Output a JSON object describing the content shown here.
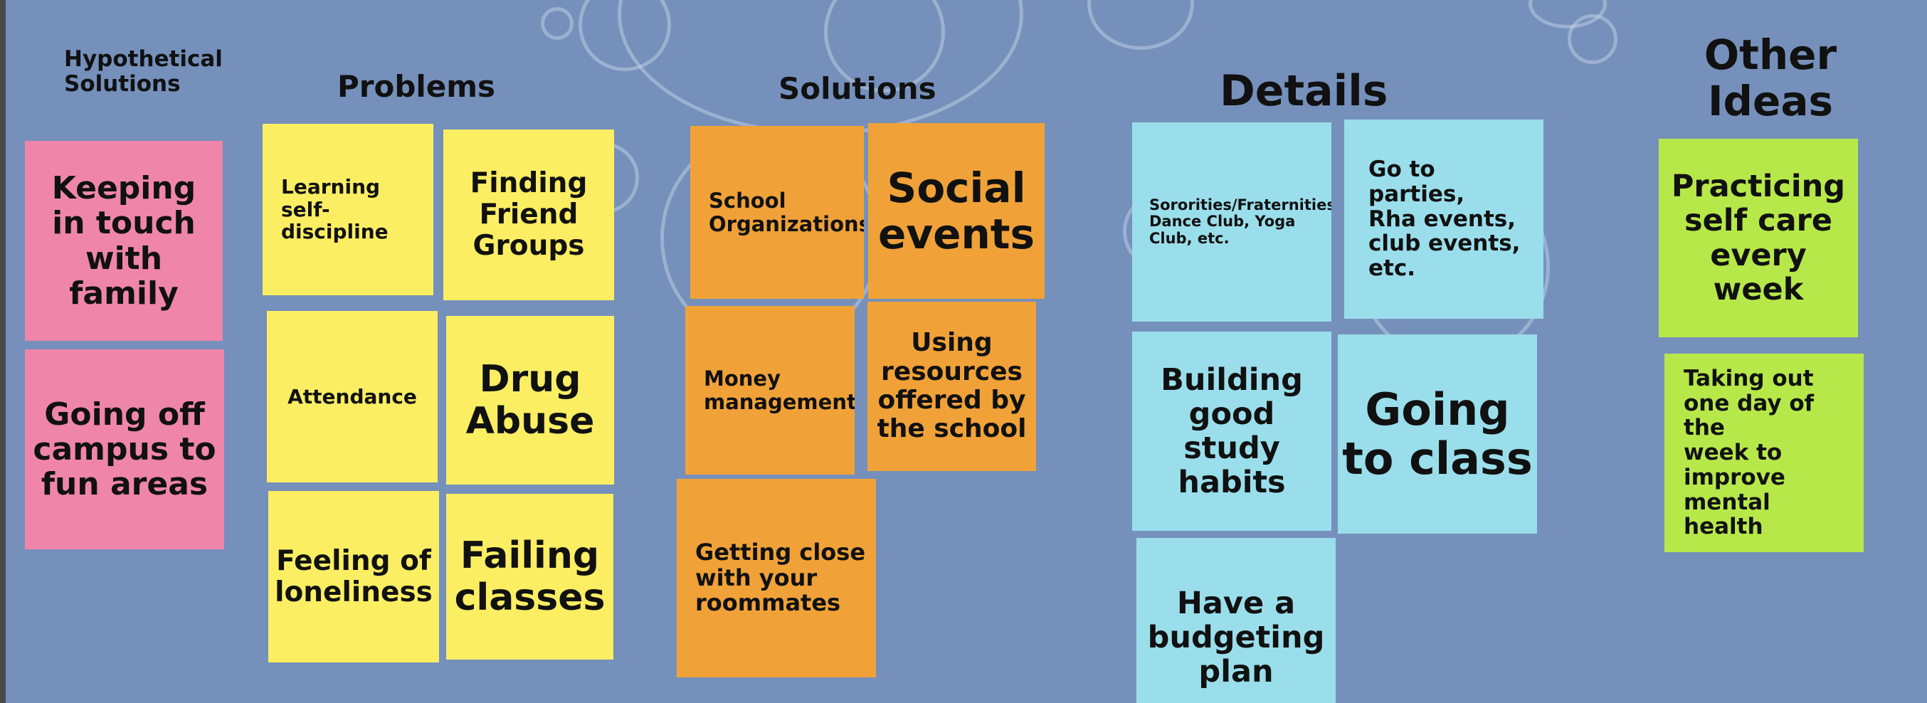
{
  "colors": {
    "background": "#7590bb",
    "pink": "#ef86a9",
    "yellow": "#fbee63",
    "orange": "#f0a239",
    "blue": "#9adeeb",
    "green": "#b7e84a"
  },
  "headings": {
    "hypothetical_solutions": "Hypothetical\nSolutions",
    "problems": "Problems",
    "solutions": "Solutions",
    "details": "Details",
    "other_ideas": "Other\nIdeas"
  },
  "notes": {
    "hypothetical": [
      "Keeping\nin touch\nwith\nfamily",
      "Going off\ncampus to\nfun areas"
    ],
    "problems": [
      "Learning\nself-discipline",
      "Finding\nFriend\nGroups",
      "Attendance",
      "Drug\nAbuse",
      "Feeling of\nloneliness",
      "Failing\nclasses"
    ],
    "solutions": [
      "School\nOrganizations",
      "Social\nevents",
      "Money\nmanagement",
      "Using\nresources\noffered by\nthe school",
      "Getting close\nwith your\nroommates"
    ],
    "details": [
      "Sororities/Fraternities,\nDance Club, Yoga\nClub, etc.",
      "Go to parties,\nRha events,\nclub events,\netc.",
      "Building\ngood\nstudy\nhabits",
      "Going\nto class",
      "Have a\nbudgeting\nplan"
    ],
    "other_ideas": [
      "Practicing\nself care\nevery\nweek",
      "Taking out\none day of the\nweek to\nimprove\nmental health"
    ]
  }
}
